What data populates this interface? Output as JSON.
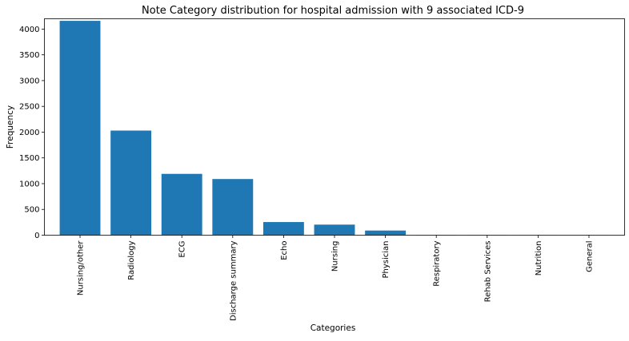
{
  "chart_data": {
    "type": "bar",
    "title": "Note Category distribution for hospital admission with 9 associated ICD-9",
    "xlabel": "Categories",
    "ylabel": "Frequency",
    "categories": [
      "Nursing/other",
      "Radiology",
      "ECG",
      "Discharge summary",
      "Echo",
      "Nursing",
      "Physician",
      "Respiratory",
      "Rehab Services",
      "Nutrition",
      "General"
    ],
    "values": [
      4160,
      2030,
      1190,
      1090,
      255,
      205,
      90,
      4,
      3,
      2,
      1
    ],
    "ylim": [
      0,
      4200
    ],
    "yticks": [
      0,
      500,
      1000,
      1500,
      2000,
      2500,
      3000,
      3500,
      4000
    ],
    "ytick_labels": [
      "0",
      "500",
      "1000",
      "1500",
      "2000",
      "2500",
      "3000",
      "3500",
      "4000"
    ],
    "bar_color": "#1f77b4",
    "grid": false,
    "legend": "none"
  }
}
